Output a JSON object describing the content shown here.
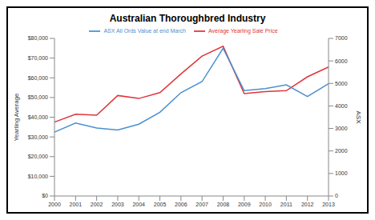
{
  "chart_data": {
    "type": "line",
    "title": "Australian Thoroughbred Industry",
    "categories": [
      "2000",
      "2001",
      "2002",
      "2003",
      "2004",
      "2005",
      "2006",
      "2007",
      "2008",
      "2009",
      "2010",
      "2011",
      "2012",
      "2013"
    ],
    "series": [
      {
        "name": "Average Yearling Sale Price",
        "color": "#e0353a",
        "values": [
          37500,
          41500,
          41000,
          51000,
          49500,
          52500,
          62000,
          71000,
          76000,
          52000,
          53000,
          53500,
          60500,
          65500
        ]
      },
      {
        "name": "ASX All Ords Value at end March",
        "color": "#4a8fd0",
        "axis": "y2",
        "values": [
          2840,
          3240,
          3020,
          2930,
          3190,
          3720,
          4590,
          5080,
          6560,
          4680,
          4770,
          4940,
          4420,
          4990
        ]
      }
    ],
    "y_label": "Yearling Average",
    "y2_label": "ASX",
    "ylim": [
      0,
      80000
    ],
    "yticks": [
      {
        "value": 0,
        "label": "$0"
      },
      {
        "value": 10000,
        "label": "$10,000"
      },
      {
        "value": 20000,
        "label": "$20,000"
      },
      {
        "value": 30000,
        "label": "$30,000"
      },
      {
        "value": 40000,
        "label": "$40,000"
      },
      {
        "value": 50000,
        "label": "$50,000"
      },
      {
        "value": 60000,
        "label": "$60,000"
      },
      {
        "value": 70000,
        "label": "$70,000"
      },
      {
        "value": 80000,
        "label": "$80,000"
      }
    ],
    "y2lim": [
      0,
      7000
    ],
    "y2ticks": [
      0,
      1000,
      2000,
      3000,
      4000,
      5000,
      6000,
      7000
    ],
    "grid": false,
    "legend": "top"
  }
}
